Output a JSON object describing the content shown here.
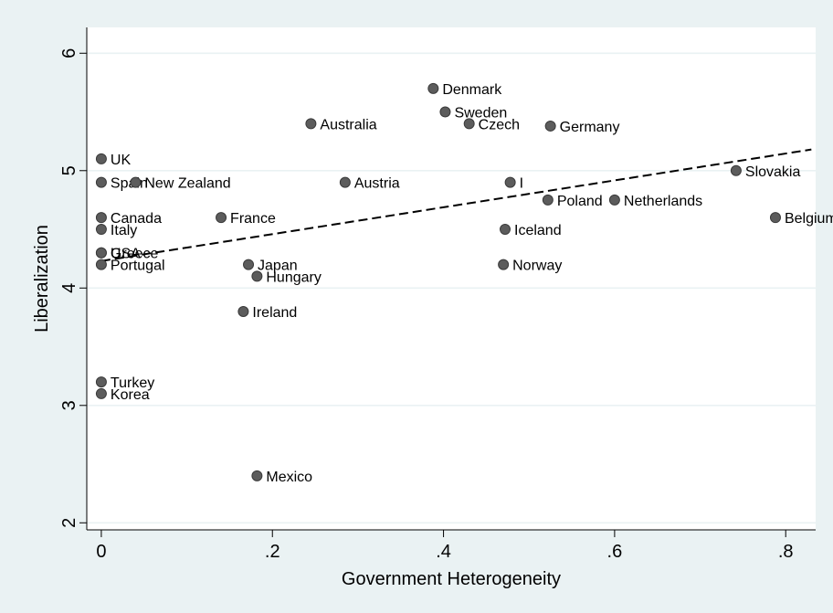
{
  "chart_data": {
    "type": "scatter",
    "xlabel": "Government Heterogeneity",
    "ylabel": "Liberalization",
    "xlim": [
      -0.017,
      0.835
    ],
    "ylim": [
      1.94,
      6.22
    ],
    "x_ticks": [
      0,
      0.2,
      0.4,
      0.6,
      0.8
    ],
    "x_tick_labels": [
      "0",
      ".2",
      ".4",
      ".6",
      ".8"
    ],
    "y_ticks": [
      2,
      3,
      4,
      5,
      6
    ],
    "y_tick_labels": [
      "2",
      "3",
      "4",
      "5",
      "6"
    ],
    "grid": "horizontal",
    "colors": {
      "background": "#eaf2f3",
      "plot_area": "#ffffff",
      "marker": "#5c5c5c",
      "fit_line": "#000000"
    },
    "points": [
      {
        "label": "UK",
        "x": 0,
        "y": 5.1
      },
      {
        "label": "Spain",
        "x": 0,
        "y": 4.9
      },
      {
        "label": "New Zealand",
        "x": 0.04,
        "y": 4.9
      },
      {
        "label": "Canada",
        "x": 0,
        "y": 4.6
      },
      {
        "label": "Italy",
        "x": 0,
        "y": 4.5
      },
      {
        "label": "USA",
        "x": 0,
        "y": 4.3
      },
      {
        "label": "Greece",
        "x": 0,
        "y": 4.3
      },
      {
        "label": "Portugal",
        "x": 0,
        "y": 4.2
      },
      {
        "label": "Turkey",
        "x": 0,
        "y": 3.2
      },
      {
        "label": "Korea",
        "x": 0,
        "y": 3.1
      },
      {
        "label": "France",
        "x": 0.14,
        "y": 4.6
      },
      {
        "label": "Ireland",
        "x": 0.166,
        "y": 3.8
      },
      {
        "label": "Japan",
        "x": 0.172,
        "y": 4.2
      },
      {
        "label": "Hungary",
        "x": 0.182,
        "y": 4.1
      },
      {
        "label": "Mexico",
        "x": 0.182,
        "y": 2.4
      },
      {
        "label": "Australia",
        "x": 0.245,
        "y": 5.4
      },
      {
        "label": "Austria",
        "x": 0.285,
        "y": 4.9
      },
      {
        "label": "Denmark",
        "x": 0.388,
        "y": 5.7
      },
      {
        "label": "Sweden",
        "x": 0.402,
        "y": 5.5
      },
      {
        "label": "Czech",
        "x": 0.43,
        "y": 5.4
      },
      {
        "label": "Norway",
        "x": 0.47,
        "y": 4.2
      },
      {
        "label": "Iceland",
        "x": 0.472,
        "y": 4.5
      },
      {
        "label": "I",
        "x": 0.478,
        "y": 4.9
      },
      {
        "label": "Poland",
        "x": 0.522,
        "y": 4.75
      },
      {
        "label": "Germany",
        "x": 0.525,
        "y": 5.38
      },
      {
        "label": "Netherlands",
        "x": 0.6,
        "y": 4.75
      },
      {
        "label": "Slovakia",
        "x": 0.742,
        "y": 5.0
      },
      {
        "label": "Belgium",
        "x": 0.788,
        "y": 4.6
      }
    ],
    "fit_line": {
      "style": "dashed",
      "x": [
        0,
        0.83
      ],
      "y": [
        4.23,
        5.18
      ]
    }
  }
}
